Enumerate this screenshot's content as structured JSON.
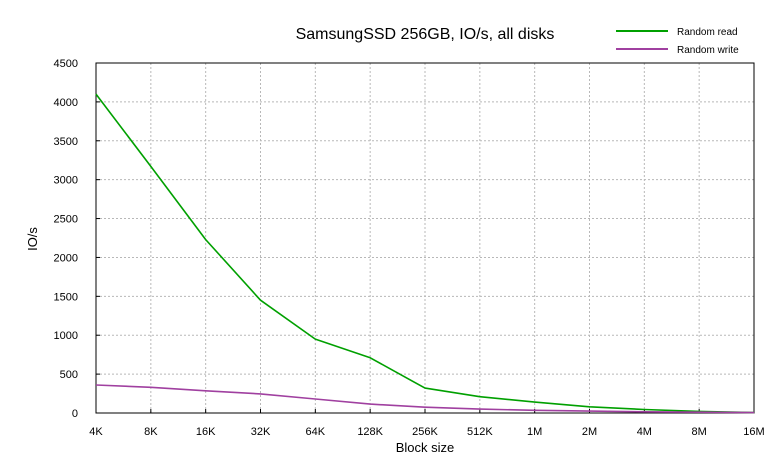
{
  "chart_data": {
    "type": "line",
    "title": "SamsungSSD 256GB, IO/s, all disks",
    "xlabel": "Block size",
    "ylabel": "IO/s",
    "categories": [
      "4K",
      "8K",
      "16K",
      "32K",
      "64K",
      "128K",
      "256K",
      "512K",
      "1M",
      "2M",
      "4M",
      "8M",
      "16M"
    ],
    "yticks": [
      0,
      500,
      1000,
      1500,
      2000,
      2500,
      3000,
      3500,
      4000,
      4500
    ],
    "ylim": [
      0,
      4500
    ],
    "grid": true,
    "legend_position": "top-right",
    "series": [
      {
        "name": "Random read",
        "color": "#00a000",
        "values": [
          4100,
          3170,
          2230,
          1450,
          950,
          710,
          320,
          210,
          140,
          80,
          45,
          20,
          5
        ]
      },
      {
        "name": "Random write",
        "color": "#a040a0",
        "values": [
          360,
          330,
          285,
          245,
          180,
          115,
          75,
          50,
          35,
          25,
          15,
          10,
          5
        ]
      }
    ]
  }
}
